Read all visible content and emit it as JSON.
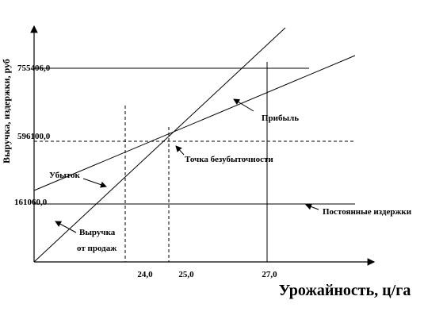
{
  "axis": {
    "y_title": "Выручка, издержки, руб",
    "x_title": "Урожайность, ц/га",
    "y_labels": [
      "755406,0",
      "596100,0",
      "161060,0"
    ],
    "x_labels": [
      "24,0",
      "25,0",
      "27,0"
    ]
  },
  "annotations": {
    "profit": "Прибыль",
    "break_even": "Точка безубыточности",
    "loss": "Убыток",
    "fixed_costs": "Постоянные издержки",
    "revenue_line1": "Выручка",
    "revenue_line2": "от продаж"
  }
}
